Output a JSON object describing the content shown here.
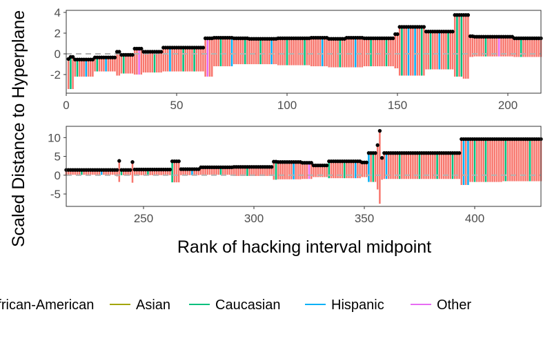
{
  "colors": {
    "African-American": "#F8766D",
    "Asian": "#A3A500",
    "Caucasian": "#00BF7D",
    "Hispanic": "#00B0F6",
    "Other": "#E76BF3",
    "point": "#000000",
    "zero_line": "#b3b3b3",
    "panel_border": "#333333"
  },
  "chart_data": {
    "type": "bar",
    "ylabel": "Scaled Distance to Hyperplane",
    "xlabel": "Rank of hacking interval midpoint",
    "legend": {
      "placement": "bottom",
      "entries": [
        "African-American",
        "Asian",
        "Caucasian",
        "Hispanic",
        "Other"
      ]
    },
    "panels": [
      {
        "x_range": [
          0,
          215
        ],
        "y_range": [
          -3.8,
          4.2
        ],
        "x_ticks": [
          0,
          50,
          100,
          150,
          200
        ],
        "y_ticks": [
          -2,
          0,
          2,
          4
        ],
        "x_tick_labels": [
          "0",
          "50",
          "100",
          "150",
          "200"
        ],
        "y_tick_labels": [
          "-2",
          "0",
          "2",
          "4"
        ],
        "rank_start": 1,
        "rank_end": 215,
        "zero_line": 0,
        "segments": [
          {
            "from": 1,
            "to": 1,
            "point": -0.5,
            "low": -3.4
          },
          {
            "from": 2,
            "to": 3,
            "point": -0.3,
            "low": -3.4
          },
          {
            "from": 4,
            "to": 12,
            "point": -0.55,
            "low": -2.2
          },
          {
            "from": 13,
            "to": 22,
            "point": -0.35,
            "low": -1.7
          },
          {
            "from": 23,
            "to": 24,
            "point": 0.2,
            "low": -2.1
          },
          {
            "from": 25,
            "to": 30,
            "point": -0.1,
            "low": -1.9
          },
          {
            "from": 31,
            "to": 34,
            "point": 0.5,
            "low": -2.0
          },
          {
            "from": 35,
            "to": 43,
            "point": 0.2,
            "low": -1.8
          },
          {
            "from": 44,
            "to": 62,
            "point": 0.6,
            "low": -1.7
          },
          {
            "from": 63,
            "to": 66,
            "point": 1.5,
            "low": -2.2
          },
          {
            "from": 67,
            "to": 75,
            "point": 1.55,
            "low": -1.2
          },
          {
            "from": 76,
            "to": 82,
            "point": 1.5,
            "low": -1.0
          },
          {
            "from": 83,
            "to": 95,
            "point": 1.45,
            "low": -1.0
          },
          {
            "from": 96,
            "to": 110,
            "point": 1.5,
            "low": -1.1
          },
          {
            "from": 111,
            "to": 118,
            "point": 1.55,
            "low": -1.2
          },
          {
            "from": 119,
            "to": 126,
            "point": 1.45,
            "low": -1.3
          },
          {
            "from": 127,
            "to": 134,
            "point": 1.55,
            "low": -1.3
          },
          {
            "from": 135,
            "to": 148,
            "point": 1.5,
            "low": -1.2
          },
          {
            "from": 149,
            "to": 150,
            "point": 1.9,
            "low": -1.4
          },
          {
            "from": 151,
            "to": 162,
            "point": 2.6,
            "low": -2.1
          },
          {
            "from": 163,
            "to": 175,
            "point": 2.15,
            "low": -1.5
          },
          {
            "from": 176,
            "to": 179,
            "point": 3.75,
            "low": -2.2
          },
          {
            "from": 180,
            "to": 182,
            "point": 3.75,
            "low": -2.4
          },
          {
            "from": 183,
            "to": 184,
            "point": 1.7,
            "low": -0.3
          },
          {
            "from": 185,
            "to": 202,
            "point": 1.65,
            "low": -0.25
          },
          {
            "from": 203,
            "to": 215,
            "point": 1.5,
            "low": -0.3
          }
        ],
        "non_red_bars": [
          {
            "rank": 2,
            "race": "Caucasian"
          },
          {
            "rank": 5,
            "race": "Caucasian"
          },
          {
            "rank": 9,
            "race": "Hispanic"
          },
          {
            "rank": 14,
            "race": "Caucasian"
          },
          {
            "rank": 18,
            "race": "Hispanic"
          },
          {
            "rank": 26,
            "race": "Caucasian"
          },
          {
            "rank": 33,
            "race": "Other"
          },
          {
            "rank": 40,
            "race": "Caucasian"
          },
          {
            "rank": 47,
            "race": "Hispanic"
          },
          {
            "rank": 53,
            "race": "Caucasian"
          },
          {
            "rank": 58,
            "race": "Caucasian"
          },
          {
            "rank": 64,
            "race": "Other"
          },
          {
            "rank": 70,
            "race": "Caucasian"
          },
          {
            "rank": 75,
            "race": "Hispanic"
          },
          {
            "rank": 81,
            "race": "Caucasian"
          },
          {
            "rank": 88,
            "race": "Caucasian"
          },
          {
            "rank": 93,
            "race": "Hispanic"
          },
          {
            "rank": 100,
            "race": "Caucasian"
          },
          {
            "rank": 108,
            "race": "Caucasian"
          },
          {
            "rank": 116,
            "race": "Hispanic"
          },
          {
            "rank": 124,
            "race": "Caucasian"
          },
          {
            "rank": 131,
            "race": "Hispanic"
          },
          {
            "rank": 138,
            "race": "Caucasian"
          },
          {
            "rank": 145,
            "race": "Caucasian"
          },
          {
            "rank": 152,
            "race": "Caucasian"
          },
          {
            "rank": 155,
            "race": "Hispanic"
          },
          {
            "rank": 158,
            "race": "Hispanic"
          },
          {
            "rank": 161,
            "race": "Caucasian"
          },
          {
            "rank": 165,
            "race": "Caucasian"
          },
          {
            "rank": 169,
            "race": "Hispanic"
          },
          {
            "rank": 173,
            "race": "Caucasian"
          },
          {
            "rank": 177,
            "race": "Caucasian"
          },
          {
            "rank": 179,
            "race": "Caucasian"
          },
          {
            "rank": 190,
            "race": "Caucasian"
          },
          {
            "rank": 196,
            "race": "Other"
          },
          {
            "rank": 206,
            "race": "Caucasian"
          }
        ]
      },
      {
        "x_range": [
          215,
          430
        ],
        "y_range": [
          -8.3,
          13
        ],
        "x_ticks": [
          250,
          300,
          350,
          400
        ],
        "y_ticks": [
          -5,
          0,
          5,
          10
        ],
        "x_tick_labels": [
          "250",
          "300",
          "350",
          "400"
        ],
        "y_tick_labels": [
          "-5",
          "0",
          "5",
          "10"
        ],
        "rank_start": 215,
        "rank_end": 430,
        "zero_line": 0,
        "segments": [
          {
            "from": 215,
            "to": 237,
            "point": 1.4,
            "low": 0.1
          },
          {
            "from": 238,
            "to": 238,
            "point": 1.4,
            "low": -0.3
          },
          {
            "from": 239,
            "to": 239,
            "point": 3.8,
            "low": -1.8
          },
          {
            "from": 240,
            "to": 244,
            "point": 1.4,
            "low": 0.0
          },
          {
            "from": 245,
            "to": 245,
            "point": 3.5,
            "low": -2.0
          },
          {
            "from": 246,
            "to": 262,
            "point": 1.5,
            "low": 0.0
          },
          {
            "from": 263,
            "to": 266,
            "point": 3.7,
            "low": -1.9
          },
          {
            "from": 267,
            "to": 275,
            "point": 1.6,
            "low": 0.0
          },
          {
            "from": 276,
            "to": 290,
            "point": 2.1,
            "low": 0.1
          },
          {
            "from": 291,
            "to": 308,
            "point": 2.2,
            "low": -0.2
          },
          {
            "from": 309,
            "to": 310,
            "point": 3.6,
            "low": -1.2
          },
          {
            "from": 311,
            "to": 321,
            "point": 3.5,
            "low": -1.1
          },
          {
            "from": 322,
            "to": 326,
            "point": 3.3,
            "low": -1.0
          },
          {
            "from": 327,
            "to": 333,
            "point": 2.6,
            "low": -0.5
          },
          {
            "from": 334,
            "to": 348,
            "point": 3.7,
            "low": -0.8
          },
          {
            "from": 349,
            "to": 351,
            "point": 3.4,
            "low": -0.5
          },
          {
            "from": 352,
            "to": 355,
            "point": 5.9,
            "low": -1.8
          },
          {
            "from": 356,
            "to": 356,
            "point": 8.0,
            "low": -3.8
          },
          {
            "from": 357,
            "to": 357,
            "point": 11.8,
            "low": -7.6
          },
          {
            "from": 358,
            "to": 358,
            "point": 4.6,
            "low": -1.2
          },
          {
            "from": 359,
            "to": 393,
            "point": 5.9,
            "low": -1.0
          },
          {
            "from": 394,
            "to": 397,
            "point": 9.6,
            "low": -2.6
          },
          {
            "from": 398,
            "to": 412,
            "point": 9.6,
            "low": -1.8
          },
          {
            "from": 413,
            "to": 430,
            "point": 9.6,
            "low": -1.6
          }
        ],
        "non_red_bars": [
          {
            "rank": 222,
            "race": "Caucasian"
          },
          {
            "rank": 231,
            "race": "Hispanic"
          },
          {
            "rank": 240,
            "race": "Caucasian"
          },
          {
            "rank": 252,
            "race": "Caucasian"
          },
          {
            "rank": 263,
            "race": "Caucasian"
          },
          {
            "rank": 272,
            "race": "Hispanic"
          },
          {
            "rank": 285,
            "race": "Caucasian"
          },
          {
            "rank": 297,
            "race": "Caucasian"
          },
          {
            "rank": 310,
            "race": "Caucasian"
          },
          {
            "rank": 318,
            "race": "Hispanic"
          },
          {
            "rank": 325,
            "race": "Other"
          },
          {
            "rank": 334,
            "race": "Caucasian"
          },
          {
            "rank": 341,
            "race": "Caucasian"
          },
          {
            "rank": 346,
            "race": "Hispanic"
          },
          {
            "rank": 352,
            "race": "Hispanic"
          },
          {
            "rank": 354,
            "race": "Caucasian"
          },
          {
            "rank": 360,
            "race": "Hispanic"
          },
          {
            "rank": 366,
            "race": "Caucasian"
          },
          {
            "rank": 375,
            "race": "Caucasian"
          },
          {
            "rank": 383,
            "race": "Caucasian"
          },
          {
            "rank": 390,
            "race": "Caucasian"
          },
          {
            "rank": 395,
            "race": "Hispanic"
          },
          {
            "rank": 397,
            "race": "Hispanic"
          },
          {
            "rank": 400,
            "race": "Caucasian"
          },
          {
            "rank": 405,
            "race": "Caucasian"
          },
          {
            "rank": 414,
            "race": "Caucasian"
          },
          {
            "rank": 425,
            "race": "Caucasian"
          }
        ]
      }
    ]
  }
}
